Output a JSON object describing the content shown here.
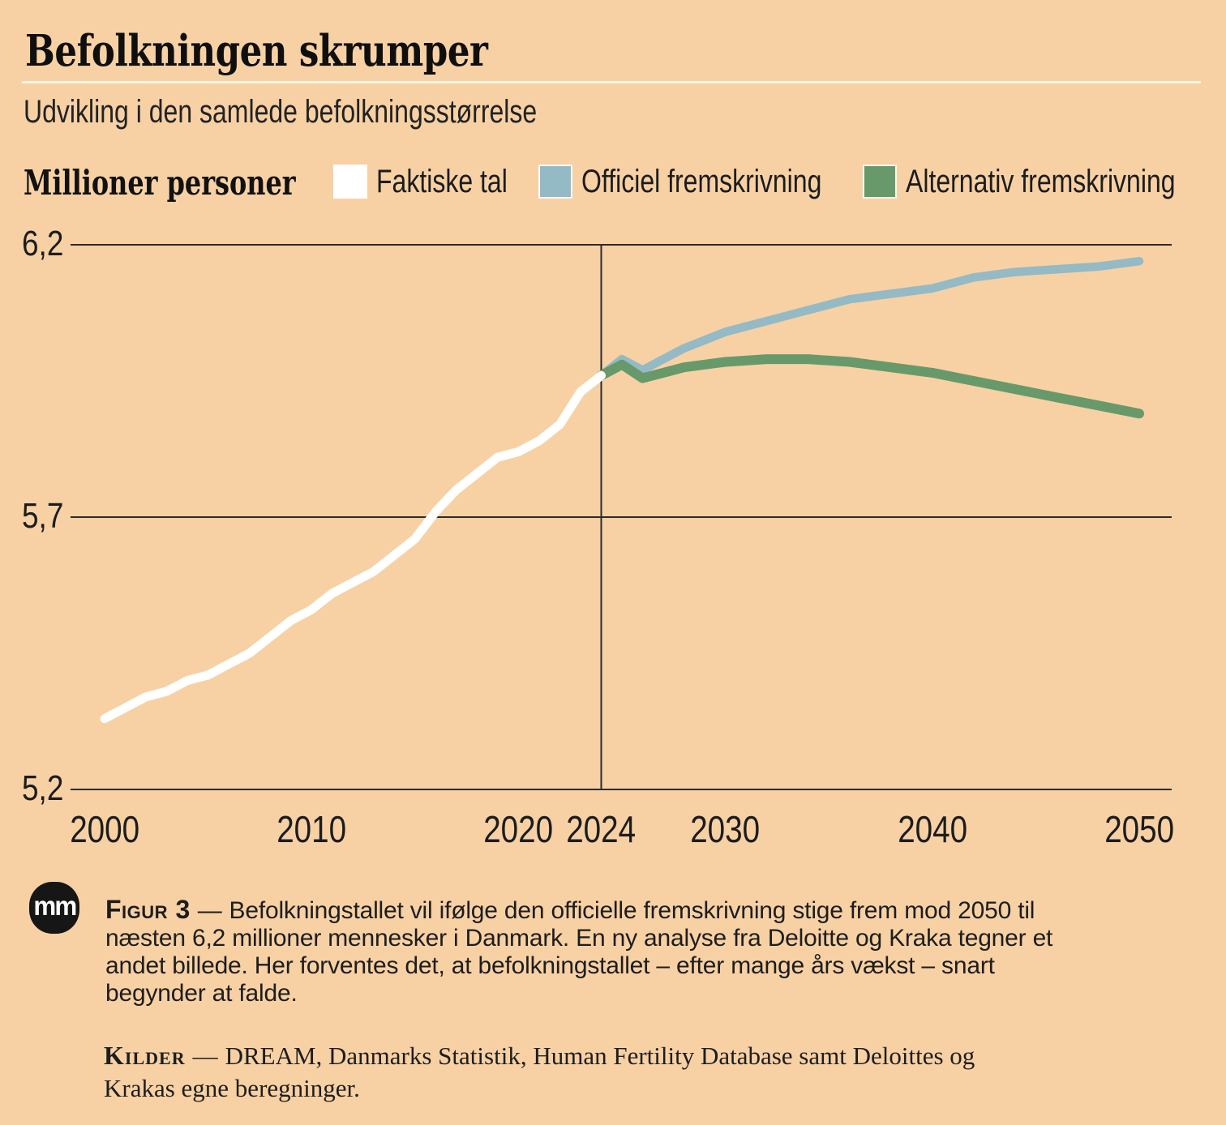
{
  "header": {
    "title": "Befolkningen skrumper",
    "subtitle": "Udvikling i den samlede befolkningsstørrelse"
  },
  "legend": {
    "axis_title": "Millioner personer",
    "items": [
      {
        "label": "Faktiske tal",
        "color": "#ffffff"
      },
      {
        "label": "Officiel fremskrivning",
        "color": "#93bac5"
      },
      {
        "label": "Alternativ fremskrivning",
        "color": "#67996b"
      }
    ]
  },
  "chart_data": {
    "type": "line",
    "title": "Befolkningen skrumper",
    "subtitle": "Udvikling i den samlede befolkningsstørrelse",
    "ylabel": "Millioner personer",
    "xlabel": "",
    "ylim": [
      5.2,
      6.2
    ],
    "xlim": [
      2000,
      2050
    ],
    "grid": "horizontal",
    "legend_position": "top",
    "background_color": "#f7d1a4",
    "gridline_color": "#2b2b2b",
    "marker_year": 2024,
    "yticks": [
      {
        "value": 6.2,
        "label": "6,2"
      },
      {
        "value": 5.7,
        "label": "5,7"
      },
      {
        "value": 5.2,
        "label": "5,2"
      }
    ],
    "xticks": [
      {
        "year": 2000,
        "label": "2000"
      },
      {
        "year": 2010,
        "label": "2010"
      },
      {
        "year": 2020,
        "label": "2020"
      },
      {
        "year": 2024,
        "label": "2024"
      },
      {
        "year": 2030,
        "label": "2030"
      },
      {
        "year": 2040,
        "label": "2040"
      },
      {
        "year": 2050,
        "label": "2050"
      }
    ],
    "series": [
      {
        "name": "Officiel fremskrivning",
        "color": "#93bac5",
        "points": [
          [
            2024,
            5.96
          ],
          [
            2025,
            5.99
          ],
          [
            2026,
            5.97
          ],
          [
            2027,
            5.99
          ],
          [
            2028,
            6.01
          ],
          [
            2030,
            6.04
          ],
          [
            2032,
            6.06
          ],
          [
            2034,
            6.08
          ],
          [
            2036,
            6.1
          ],
          [
            2038,
            6.11
          ],
          [
            2040,
            6.12
          ],
          [
            2042,
            6.14
          ],
          [
            2044,
            6.15
          ],
          [
            2046,
            6.155
          ],
          [
            2048,
            6.16
          ],
          [
            2050,
            6.17
          ]
        ]
      },
      {
        "name": "Alternativ fremskrivning",
        "color": "#67996b",
        "points": [
          [
            2024,
            5.96
          ],
          [
            2025,
            5.98
          ],
          [
            2026,
            5.955
          ],
          [
            2027,
            5.965
          ],
          [
            2028,
            5.975
          ],
          [
            2030,
            5.985
          ],
          [
            2032,
            5.99
          ],
          [
            2034,
            5.99
          ],
          [
            2036,
            5.985
          ],
          [
            2038,
            5.975
          ],
          [
            2040,
            5.965
          ],
          [
            2042,
            5.95
          ],
          [
            2044,
            5.935
          ],
          [
            2046,
            5.92
          ],
          [
            2048,
            5.905
          ],
          [
            2050,
            5.89
          ]
        ]
      },
      {
        "name": "Faktiske tal",
        "color": "#ffffff",
        "points": [
          [
            2000,
            5.33
          ],
          [
            2001,
            5.35
          ],
          [
            2002,
            5.37
          ],
          [
            2003,
            5.38
          ],
          [
            2004,
            5.4
          ],
          [
            2005,
            5.41
          ],
          [
            2006,
            5.43
          ],
          [
            2007,
            5.45
          ],
          [
            2008,
            5.48
          ],
          [
            2009,
            5.51
          ],
          [
            2010,
            5.53
          ],
          [
            2011,
            5.56
          ],
          [
            2012,
            5.58
          ],
          [
            2013,
            5.6
          ],
          [
            2014,
            5.63
          ],
          [
            2015,
            5.66
          ],
          [
            2016,
            5.71
          ],
          [
            2017,
            5.75
          ],
          [
            2018,
            5.78
          ],
          [
            2019,
            5.81
          ],
          [
            2020,
            5.82
          ],
          [
            2021,
            5.84
          ],
          [
            2022,
            5.87
          ],
          [
            2023,
            5.93
          ],
          [
            2024,
            5.96
          ]
        ]
      }
    ]
  },
  "footer": {
    "logo_text": "mm",
    "figure_label": "Figur 3",
    "separator": "—",
    "caption_lines": [
      "Befolkningstallet vil ifølge den officielle fremskrivning stige frem mod 2050 til",
      "næsten 6,2 millioner mennesker i Danmark. En ny analyse fra Deloitte og Kraka tegner et",
      "andet billede. Her forventes det, at befolkningstallet – efter mange års vækst – snart",
      "begynder at falde."
    ],
    "sources_label": "Kilder",
    "sources_lines": [
      "DREAM, Danmarks Statistik, Human Fertility Database samt Deloittes og",
      "Krakas egne beregninger."
    ]
  }
}
